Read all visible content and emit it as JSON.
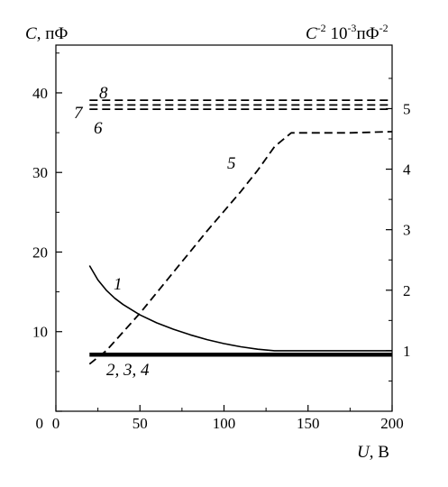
{
  "chart_data": {
    "type": "line",
    "x_axis": {
      "label_var": "U",
      "label_unit": ", В",
      "range": [
        0,
        200
      ],
      "ticks": [
        0,
        50,
        100,
        150,
        200
      ],
      "tick_labels": [
        "0",
        "50",
        "100",
        "150",
        "200"
      ]
    },
    "y_left": {
      "label_var": "C",
      "label_unit": ", пФ",
      "range": [
        0,
        46
      ],
      "ticks": [
        0,
        10,
        20,
        30,
        40
      ],
      "tick_labels": [
        "",
        "10",
        "20",
        "30",
        "40"
      ]
    },
    "y_right": {
      "label_prefix": "C",
      "label_sup1": "-2",
      "label_mid": " 10",
      "label_sup2": "-3",
      "label_unit": "пФ",
      "label_sup3": "-2",
      "range": [
        0,
        6.05
      ],
      "ticks": [
        1,
        2,
        3,
        4,
        5
      ],
      "tick_labels": [
        "1",
        "2",
        "3",
        "4",
        "5"
      ]
    },
    "series": [
      {
        "name": "1",
        "axis": "left",
        "style": "solid",
        "x": [
          20,
          25,
          30,
          35,
          40,
          50,
          60,
          70,
          80,
          90,
          100,
          110,
          120,
          130,
          150,
          175,
          200
        ],
        "y": [
          18.3,
          16.5,
          15.2,
          14.2,
          13.4,
          12.1,
          11.1,
          10.3,
          9.6,
          9.0,
          8.5,
          8.1,
          7.8,
          7.6,
          7.6,
          7.6,
          7.6
        ]
      },
      {
        "name": "2, 3, 4",
        "axis": "left",
        "style": "thick",
        "x": [
          20,
          200
        ],
        "y": [
          7.1,
          7.1
        ]
      },
      {
        "name": "5",
        "axis": "right",
        "style": "dashed",
        "x": [
          20,
          30,
          50,
          70,
          90,
          110,
          120,
          130,
          140,
          150,
          175,
          200
        ],
        "y": [
          0.78,
          1.0,
          1.62,
          2.3,
          2.98,
          3.63,
          3.98,
          4.37,
          4.6,
          4.6,
          4.6,
          4.62
        ]
      },
      {
        "name": "6",
        "axis": "right",
        "style": "dashed",
        "x": [
          20,
          200
        ],
        "y": [
          4.99,
          4.99
        ]
      },
      {
        "name": "7",
        "axis": "right",
        "style": "dashed",
        "x": [
          20,
          200
        ],
        "y": [
          5.06,
          5.06
        ]
      },
      {
        "name": "8",
        "axis": "right",
        "style": "dashed",
        "x": [
          20,
          200
        ],
        "y": [
          5.14,
          5.14
        ]
      }
    ]
  }
}
